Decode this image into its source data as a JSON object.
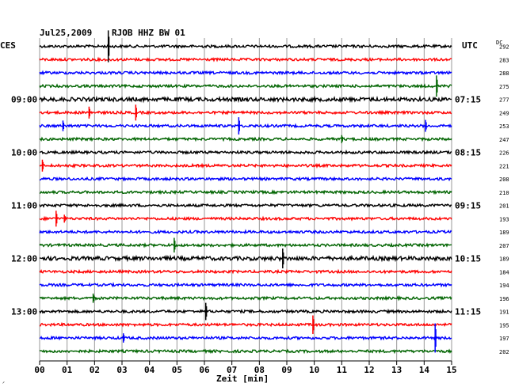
{
  "header": {
    "date": "Jul25,2009",
    "station": "RJOB HHZ BW 01",
    "left_timezone": "CES",
    "right_timezone": "UTC",
    "dc_label": "DC"
  },
  "chart_data": {
    "type": "line",
    "title": "Jul25,2009 RJOB HHZ BW 01",
    "xlabel": "Zeit [min]",
    "xlim": [
      0,
      15
    ],
    "x_ticks": [
      "00",
      "01",
      "02",
      "03",
      "04",
      "05",
      "06",
      "07",
      "08",
      "09",
      "10",
      "11",
      "12",
      "13",
      "14",
      "15"
    ],
    "trace_count": 24,
    "trace_colors": [
      "#000000",
      "#ff0000",
      "#0000ff",
      "#006400"
    ],
    "left_time_labels": [
      {
        "row": 4,
        "label": "09:00"
      },
      {
        "row": 8,
        "label": "10:00"
      },
      {
        "row": 12,
        "label": "11:00"
      },
      {
        "row": 16,
        "label": "12:00"
      },
      {
        "row": 20,
        "label": "13:00"
      }
    ],
    "right_time_labels": [
      {
        "row": 4,
        "label": "07:15"
      },
      {
        "row": 8,
        "label": "08:15"
      },
      {
        "row": 12,
        "label": "09:15"
      },
      {
        "row": 16,
        "label": "10:15"
      },
      {
        "row": 20,
        "label": "11:15"
      }
    ],
    "dc_offsets": [
      292,
      283,
      288,
      275,
      277,
      249,
      253,
      247,
      226,
      221,
      208,
      210,
      201,
      193,
      189,
      207,
      189,
      184,
      194,
      196,
      191,
      195,
      197,
      202
    ],
    "spikes": [
      {
        "row": 0,
        "minute": 2.5,
        "amplitude": 2.4
      },
      {
        "row": 3,
        "minute": 14.45,
        "amplitude": 1.6
      },
      {
        "row": 5,
        "minute": 1.8,
        "amplitude": 0.9
      },
      {
        "row": 5,
        "minute": 3.5,
        "amplitude": 1.2
      },
      {
        "row": 6,
        "minute": 0.85,
        "amplitude": 0.8
      },
      {
        "row": 6,
        "minute": 7.25,
        "amplitude": 1.3
      },
      {
        "row": 6,
        "minute": 14.05,
        "amplitude": 0.9
      },
      {
        "row": 7,
        "minute": 11.0,
        "amplitude": 0.6
      },
      {
        "row": 9,
        "minute": 0.1,
        "amplitude": 0.9
      },
      {
        "row": 13,
        "minute": 0.6,
        "amplitude": 1.2
      },
      {
        "row": 13,
        "minute": 0.9,
        "amplitude": 0.6
      },
      {
        "row": 15,
        "minute": 4.9,
        "amplitude": 1.1
      },
      {
        "row": 16,
        "minute": 8.85,
        "amplitude": 1.5
      },
      {
        "row": 19,
        "minute": 1.95,
        "amplitude": 0.7
      },
      {
        "row": 20,
        "minute": 6.05,
        "amplitude": 1.3
      },
      {
        "row": 21,
        "minute": 9.95,
        "amplitude": 1.4
      },
      {
        "row": 22,
        "minute": 3.05,
        "amplitude": 0.7
      },
      {
        "row": 22,
        "minute": 14.4,
        "amplitude": 2.2
      }
    ]
  },
  "footer_mark": "ᐟ"
}
